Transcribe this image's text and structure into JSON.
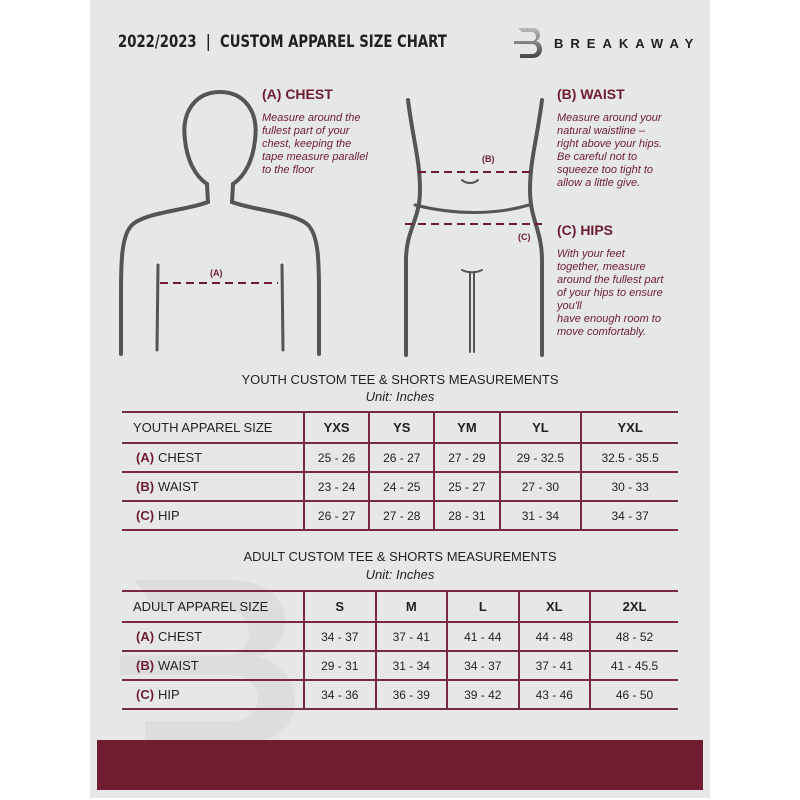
{
  "header": {
    "title": "2022/2023  |  CUSTOM APPAREL SIZE CHART",
    "brand": "BREAKAWAY"
  },
  "colors": {
    "accent": "#6e1c2f",
    "background": "#e6e7e8"
  },
  "measures": {
    "chest": {
      "heading": "(A) CHEST",
      "text": "Measure around the\nfullest part of your\nchest, keeping the\ntape measure parallel\nto the floor",
      "marker": "(A)"
    },
    "waist": {
      "heading": "(B) WAIST",
      "text": "Measure around your\nnatural waistline –\nright above your hips.\nBe careful not to\nsqueeze too tight to\nallow a little give.",
      "marker": "(B)"
    },
    "hips": {
      "heading": "(C) HIPS",
      "text": "With your feet\ntogether, measure\naround the fullest part\nof your hips to ensure\nyou'll\nhave enough room to\nmove comfortably.",
      "marker": "(C)"
    }
  },
  "youth": {
    "title": "YOUTH CUSTOM TEE & SHORTS MEASUREMENTS",
    "unit": "Unit: Inches",
    "size_label": "YOUTH APPAREL SIZE",
    "sizes": [
      "YXS",
      "YS",
      "YM",
      "YL",
      "YXL"
    ],
    "rows": [
      {
        "letter": "(A)",
        "label": "CHEST",
        "values": [
          "25 - 26",
          "26 - 27",
          "27 - 29",
          "29 - 32.5",
          "32.5 - 35.5"
        ]
      },
      {
        "letter": "(B)",
        "label": "WAIST",
        "values": [
          "23 - 24",
          "24 - 25",
          "25 - 27",
          "27 - 30",
          "30 - 33"
        ]
      },
      {
        "letter": "(C)",
        "label": "HIP",
        "values": [
          "26 - 27",
          "27 - 28",
          "28 - 31",
          "31 - 34",
          "34 - 37"
        ]
      }
    ]
  },
  "adult": {
    "title": "ADULT CUSTOM TEE & SHORTS MEASUREMENTS",
    "unit": "Unit: Inches",
    "size_label": "ADULT APPAREL SIZE",
    "sizes": [
      "S",
      "M",
      "L",
      "XL",
      "2XL"
    ],
    "rows": [
      {
        "letter": "(A)",
        "label": "CHEST",
        "values": [
          "34 - 37",
          "37 - 41",
          "41 - 44",
          "44 - 48",
          "48 - 52"
        ]
      },
      {
        "letter": "(B)",
        "label": "WAIST",
        "values": [
          "29 - 31",
          "31 - 34",
          "34 - 37",
          "37 - 41",
          "41 - 45.5"
        ]
      },
      {
        "letter": "(C)",
        "label": "HIP",
        "values": [
          "34 - 36",
          "36 - 39",
          "39 - 42",
          "43 - 46",
          "46 - 50"
        ]
      }
    ]
  }
}
